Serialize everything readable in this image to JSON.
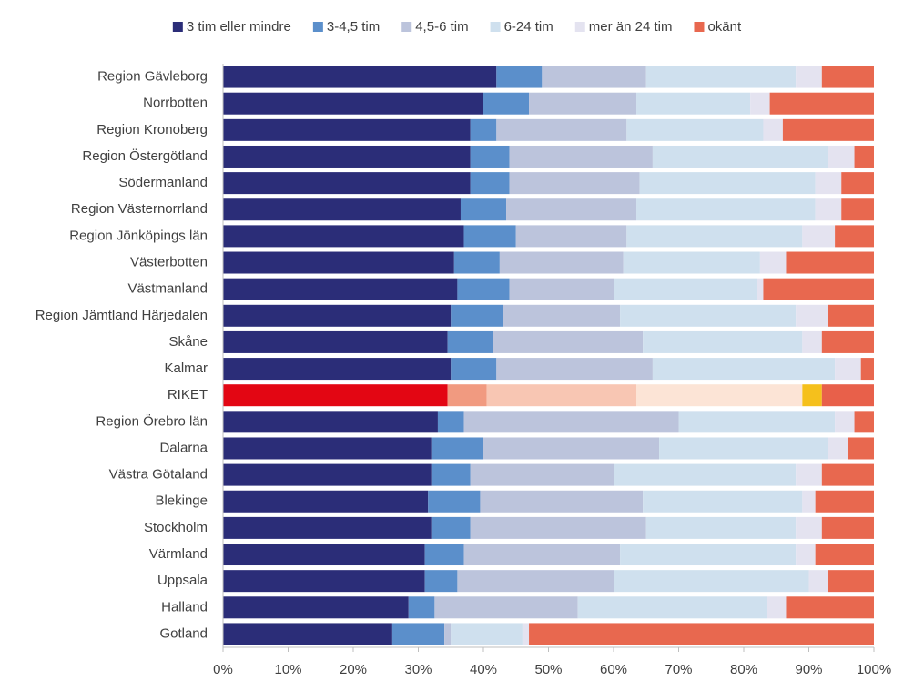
{
  "chart_data": {
    "type": "stacked-barh",
    "categories": [
      "Region Gävleborg",
      "Norrbotten",
      "Region Kronoberg",
      "Region Östergötland",
      "Södermanland",
      "Region Västernorrland",
      "Region Jönköpings län",
      "Västerbotten",
      "Västmanland",
      "Region Jämtland Härjedalen",
      "Skåne",
      "Kalmar",
      "RIKET",
      "Region Örebro län",
      "Dalarna",
      "Västra Götaland",
      "Blekinge",
      "Stockholm",
      "Värmland",
      "Uppsala",
      "Halland",
      "Gotland"
    ],
    "highlight": "RIKET",
    "series": [
      {
        "name": "3 tim eller mindre",
        "color": "#2b2d78",
        "highlight_color": "#e30613",
        "values": [
          42,
          40,
          38,
          38,
          38,
          36.5,
          37,
          35.5,
          36,
          35,
          34.5,
          35,
          34.5,
          33,
          32,
          32,
          31.5,
          32,
          31,
          31,
          28.5,
          26
        ]
      },
      {
        "name": "3-4,5 tim",
        "color": "#5b8fcb",
        "highlight_color": "#f19a80",
        "values": [
          7,
          7,
          4,
          6,
          6,
          7,
          8,
          7,
          8,
          8,
          7,
          7,
          6,
          4,
          8,
          6,
          8,
          6,
          6,
          5,
          4,
          8
        ]
      },
      {
        "name": "4,5-6 tim",
        "color": "#bcc4dc",
        "highlight_color": "#f8c6b3",
        "values": [
          16,
          16.5,
          20,
          22,
          20,
          20,
          17,
          19,
          16,
          18,
          23,
          24,
          23,
          33,
          27,
          22,
          25,
          27,
          24,
          24,
          22,
          1
        ]
      },
      {
        "name": "6-24 tim",
        "color": "#cfe0ee",
        "highlight_color": "#fce4d6",
        "values": [
          23,
          17.5,
          21,
          27,
          27,
          27.5,
          27,
          21,
          22,
          27,
          24.5,
          28,
          25.5,
          24,
          26,
          28,
          24.5,
          23,
          27,
          30,
          29,
          11
        ]
      },
      {
        "name": "mer än 24 tim",
        "color": "#e4e3f0",
        "highlight_color": "#f5c01c",
        "values": [
          4,
          3,
          3,
          4,
          4,
          4,
          5,
          4,
          1,
          5,
          3,
          4,
          3,
          3,
          3,
          4,
          2,
          4,
          3,
          3,
          3,
          1
        ]
      },
      {
        "name": "okänt",
        "color": "#e8684f",
        "highlight_color": "#e8604a",
        "values": [
          8,
          16,
          14,
          3,
          5,
          5,
          6,
          13.5,
          17,
          7,
          8,
          2,
          8,
          3,
          4,
          8,
          9,
          8,
          9,
          7,
          13.5,
          53
        ]
      }
    ],
    "xlim": [
      0,
      100
    ],
    "xticks": [
      {
        "value": 0,
        "label": "0%"
      },
      {
        "value": 10,
        "label": "10%"
      },
      {
        "value": 20,
        "label": "20%"
      },
      {
        "value": 30,
        "label": "30%"
      },
      {
        "value": 40,
        "label": "40%"
      },
      {
        "value": 50,
        "label": "50%"
      },
      {
        "value": 60,
        "label": "60%"
      },
      {
        "value": 70,
        "label": "70%"
      },
      {
        "value": 80,
        "label": "80%"
      },
      {
        "value": 90,
        "label": "90%"
      },
      {
        "value": 100,
        "label": "100%"
      }
    ],
    "legend": "top"
  }
}
